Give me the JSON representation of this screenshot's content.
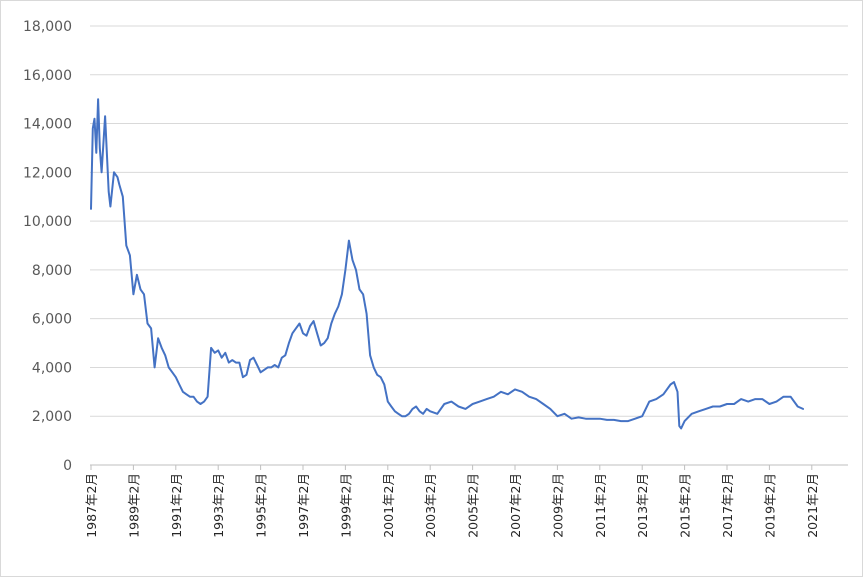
{
  "chart_data": {
    "type": "line",
    "title": "",
    "xlabel": "",
    "ylabel": "",
    "ylim": [
      0,
      18000
    ],
    "y_ticks": [
      0,
      2000,
      4000,
      6000,
      8000,
      10000,
      12000,
      14000,
      16000,
      18000
    ],
    "y_tick_labels": [
      "0",
      "2,000",
      "4,000",
      "6,000",
      "8,000",
      "10,000",
      "12,000",
      "14,000",
      "16,000",
      "18,000"
    ],
    "x_range": [
      "1987-02",
      "2021-02"
    ],
    "x_tick_labels": [
      "1987年2月",
      "1989年2月",
      "1991年2月",
      "1993年2月",
      "1995年2月",
      "1997年2月",
      "1999年2月",
      "2001年2月",
      "2003年2月",
      "2005年2月",
      "2007年2月",
      "2009年2月",
      "2011年2月",
      "2013年2月",
      "2015年2月",
      "2017年2月",
      "2019年2月",
      "2021年2月"
    ],
    "grid": true,
    "legend": "none",
    "series": [
      {
        "color": "#4472c4",
        "x": [
          "1987-02",
          "1987-03",
          "1987-04",
          "1987-05",
          "1987-06",
          "1987-07",
          "1987-08",
          "1987-10",
          "1987-12",
          "1988-01",
          "1988-03",
          "1988-05",
          "1988-06",
          "1988-08",
          "1988-10",
          "1988-12",
          "1989-02",
          "1989-04",
          "1989-06",
          "1989-08",
          "1989-10",
          "1989-12",
          "1990-02",
          "1990-04",
          "1990-06",
          "1990-08",
          "1990-10",
          "1990-12",
          "1991-02",
          "1991-04",
          "1991-06",
          "1991-08",
          "1991-10",
          "1991-12",
          "1992-02",
          "1992-04",
          "1992-06",
          "1992-08",
          "1992-10",
          "1992-12",
          "1993-02",
          "1993-04",
          "1993-06",
          "1993-08",
          "1993-10",
          "1993-12",
          "1994-02",
          "1994-04",
          "1994-06",
          "1994-08",
          "1994-10",
          "1994-12",
          "1995-02",
          "1995-04",
          "1995-06",
          "1995-08",
          "1995-10",
          "1995-12",
          "1996-02",
          "1996-04",
          "1996-06",
          "1996-08",
          "1996-10",
          "1996-12",
          "1997-02",
          "1997-04",
          "1997-06",
          "1997-08",
          "1997-10",
          "1997-12",
          "1998-02",
          "1998-04",
          "1998-06",
          "1998-08",
          "1998-10",
          "1998-12",
          "1999-02",
          "1999-04",
          "1999-06",
          "1999-08",
          "1999-10",
          "1999-12",
          "2000-02",
          "2000-04",
          "2000-06",
          "2000-08",
          "2000-10",
          "2000-12",
          "2001-02",
          "2001-04",
          "2001-06",
          "2001-08",
          "2001-10",
          "2001-12",
          "2002-02",
          "2002-04",
          "2002-06",
          "2002-08",
          "2002-10",
          "2002-12",
          "2003-02",
          "2003-06",
          "2003-10",
          "2004-02",
          "2004-06",
          "2004-10",
          "2005-02",
          "2005-06",
          "2005-10",
          "2006-02",
          "2006-06",
          "2006-10",
          "2007-02",
          "2007-06",
          "2007-10",
          "2008-02",
          "2008-06",
          "2008-10",
          "2009-02",
          "2009-06",
          "2009-10",
          "2010-02",
          "2010-06",
          "2010-10",
          "2011-02",
          "2011-06",
          "2011-10",
          "2012-02",
          "2012-06",
          "2012-10",
          "2013-02",
          "2013-06",
          "2013-10",
          "2014-02",
          "2014-06",
          "2014-08",
          "2014-10",
          "2014-11",
          "2014-12",
          "2015-02",
          "2015-06",
          "2015-10",
          "2016-02",
          "2016-06",
          "2016-10",
          "2017-02",
          "2017-06",
          "2017-10",
          "2018-02",
          "2018-06",
          "2018-10",
          "2019-02",
          "2019-06",
          "2019-10",
          "2020-02",
          "2020-06",
          "2020-09"
        ],
        "y": [
          10500,
          13800,
          14200,
          12800,
          15000,
          13000,
          12000,
          14300,
          11200,
          10600,
          12000,
          11800,
          11500,
          11000,
          9000,
          8600,
          7000,
          7800,
          7200,
          7000,
          5800,
          5600,
          4000,
          5200,
          4800,
          4500,
          4000,
          3800,
          3600,
          3300,
          3000,
          2900,
          2800,
          2800,
          2600,
          2500,
          2600,
          2800,
          4800,
          4600,
          4700,
          4400,
          4600,
          4200,
          4300,
          4200,
          4200,
          3600,
          3700,
          4300,
          4400,
          4100,
          3800,
          3900,
          4000,
          4000,
          4100,
          4000,
          4400,
          4500,
          5000,
          5400,
          5600,
          5800,
          5400,
          5300,
          5700,
          5900,
          5400,
          4900,
          5000,
          5200,
          5800,
          6200,
          6500,
          7000,
          8000,
          9200,
          8400,
          8000,
          7200,
          7000,
          6200,
          4500,
          4000,
          3700,
          3600,
          3300,
          2600,
          2400,
          2200,
          2100,
          2000,
          2000,
          2100,
          2300,
          2400,
          2200,
          2100,
          2300,
          2200,
          2100,
          2500,
          2600,
          2400,
          2300,
          2500,
          2600,
          2700,
          2800,
          3000,
          2900,
          3100,
          3000,
          2800,
          2700,
          2500,
          2300,
          2000,
          2100,
          1900,
          1950,
          1900,
          1900,
          1900,
          1850,
          1850,
          1800,
          1800,
          1900,
          2000,
          2600,
          2700,
          2900,
          3300,
          3400,
          3000,
          1600,
          1500,
          1800,
          2100,
          2200,
          2300,
          2400,
          2400,
          2500,
          2500,
          2700,
          2600,
          2700,
          2700,
          2500,
          2600,
          2800,
          2800,
          2400,
          2300
        ]
      }
    ]
  }
}
